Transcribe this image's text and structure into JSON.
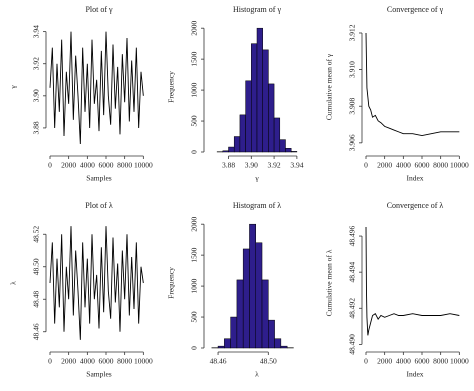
{
  "chart_data": [
    {
      "type": "line",
      "title": "Plot of γ",
      "x_label": "Samples",
      "y_label": "γ",
      "x": [
        0,
        250,
        500,
        750,
        1000,
        1250,
        1500,
        1750,
        2000,
        2250,
        2500,
        2750,
        3000,
        3250,
        3500,
        3750,
        4000,
        4250,
        4500,
        4750,
        5000,
        5250,
        5500,
        5750,
        6000,
        6250,
        6500,
        6750,
        7000,
        7250,
        7500,
        7750,
        8000,
        8250,
        8500,
        8750,
        9000,
        9250,
        9500,
        9750,
        10000
      ],
      "values": [
        3.905,
        3.93,
        3.88,
        3.92,
        3.89,
        3.935,
        3.875,
        3.915,
        3.895,
        3.94,
        3.885,
        3.925,
        3.9,
        3.87,
        3.93,
        3.89,
        3.92,
        3.88,
        3.935,
        3.895,
        3.91,
        3.878,
        3.928,
        3.888,
        3.94,
        3.9,
        3.882,
        3.932,
        3.892,
        3.918,
        3.876,
        3.926,
        3.896,
        3.936,
        3.884,
        3.922,
        3.89,
        3.93,
        3.88,
        3.915,
        3.9
      ],
      "color": "#000000",
      "xlim": [
        0,
        10500
      ],
      "xticks": [
        0,
        2000,
        4000,
        6000,
        8000,
        10000
      ],
      "ylim": [
        3.865,
        3.946
      ],
      "yticks": [
        3.88,
        {
          "value": 3.9,
          "label": "3.90"
        },
        3.92,
        3.94
      ]
    },
    {
      "type": "histogram",
      "title": "Histogram of γ",
      "x_label": "γ",
      "y_label": "Frequency",
      "bins": [
        3.87,
        3.875,
        3.88,
        3.885,
        3.89,
        3.895,
        3.9,
        3.905,
        3.91,
        3.915,
        3.92,
        3.925,
        3.93,
        3.935,
        3.94
      ],
      "values": [
        5,
        20,
        80,
        250,
        600,
        1150,
        1750,
        2000,
        1650,
        1100,
        550,
        200,
        60,
        10
      ],
      "color": "#2e1e8c",
      "xlim": [
        3.862,
        3.948
      ],
      "xticks": [
        3.88,
        {
          "value": 3.9,
          "label": "3.90"
        },
        3.92,
        3.94
      ],
      "ylim": [
        0,
        2100
      ],
      "yticks": [
        0,
        500,
        1000,
        1500,
        2000
      ]
    },
    {
      "type": "line",
      "title": "Convergence of γ",
      "x_label": "Index",
      "y_label": "Cumulative mean of γ",
      "x": [
        1,
        50,
        100,
        200,
        300,
        500,
        700,
        1000,
        1300,
        1600,
        2000,
        2500,
        3000,
        3500,
        4000,
        5000,
        6000,
        7000,
        8000,
        9000,
        10000
      ],
      "values": [
        3.912,
        3.9105,
        3.909,
        3.9085,
        3.908,
        3.9078,
        3.9074,
        3.9075,
        3.9072,
        3.9071,
        3.9069,
        3.9068,
        3.9067,
        3.9066,
        3.9065,
        3.9065,
        3.9064,
        3.9065,
        3.9066,
        3.9066,
        3.9066
      ],
      "color": "#000000",
      "xlim": [
        0,
        10500
      ],
      "xticks": [
        0,
        2000,
        4000,
        6000,
        8000,
        10000
      ],
      "ylim": [
        3.9055,
        3.9126
      ],
      "yticks": [
        3.906,
        3.908,
        {
          "value": 3.91,
          "label": "3.910"
        },
        3.912
      ]
    },
    {
      "type": "line",
      "title": "Plot of λ",
      "x_label": "Samples",
      "y_label": "λ",
      "x": [
        0,
        250,
        500,
        750,
        1000,
        1250,
        1500,
        1750,
        2000,
        2250,
        2500,
        2750,
        3000,
        3250,
        3500,
        3750,
        4000,
        4250,
        4500,
        4750,
        5000,
        5250,
        5500,
        5750,
        6000,
        6250,
        6500,
        6750,
        7000,
        7250,
        7500,
        7750,
        8000,
        8250,
        8500,
        8750,
        9000,
        9250,
        9500,
        9750,
        10000
      ],
      "values": [
        48.49,
        48.515,
        48.465,
        48.505,
        48.475,
        48.52,
        48.46,
        48.5,
        48.48,
        48.525,
        48.47,
        48.51,
        48.485,
        48.455,
        48.515,
        48.475,
        48.505,
        48.465,
        48.52,
        48.48,
        48.495,
        48.462,
        48.512,
        48.472,
        48.525,
        48.485,
        48.468,
        48.518,
        48.478,
        48.502,
        48.46,
        48.51,
        48.48,
        48.52,
        48.47,
        48.506,
        48.474,
        48.515,
        48.465,
        48.5,
        48.49
      ],
      "color": "#000000",
      "xlim": [
        0,
        10500
      ],
      "xticks": [
        0,
        2000,
        4000,
        6000,
        8000,
        10000
      ],
      "ylim": [
        48.45,
        48.53
      ],
      "yticks": [
        48.46,
        48.48,
        {
          "value": 48.5,
          "label": "48.50"
        },
        48.52
      ]
    },
    {
      "type": "histogram",
      "title": "Histogram of λ",
      "x_label": "λ",
      "y_label": "Frequency",
      "bins": [
        48.455,
        48.46,
        48.465,
        48.47,
        48.475,
        48.48,
        48.485,
        48.49,
        48.495,
        48.5,
        48.505,
        48.51,
        48.515,
        48.52
      ],
      "values": [
        5,
        30,
        150,
        500,
        1100,
        1600,
        2000,
        1700,
        1100,
        450,
        150,
        30,
        5
      ],
      "color": "#2e1e8c",
      "xlim": [
        48.452,
        48.53
      ],
      "xticks": [
        48.46,
        {
          "value": 48.5,
          "label": "48.50"
        }
      ],
      "ylim": [
        0,
        2100
      ],
      "yticks": [
        0,
        500,
        1000,
        1500,
        2000
      ]
    },
    {
      "type": "line",
      "title": "Convergence of λ",
      "x_label": "Index",
      "y_label": "Cumulative mean of λ",
      "x": [
        1,
        50,
        100,
        200,
        300,
        500,
        700,
        1000,
        1300,
        1600,
        2000,
        2500,
        3000,
        3500,
        4000,
        5000,
        6000,
        7000,
        8000,
        9000,
        10000
      ],
      "values": [
        48.4965,
        48.493,
        48.4915,
        48.4905,
        48.4908,
        48.4912,
        48.4916,
        48.4917,
        48.4914,
        48.4916,
        48.4915,
        48.4916,
        48.4917,
        48.4916,
        48.4916,
        48.4917,
        48.4916,
        48.4916,
        48.4916,
        48.4917,
        48.4916
      ],
      "color": "#000000",
      "xlim": [
        0,
        10500
      ],
      "xticks": [
        0,
        2000,
        4000,
        6000,
        8000,
        10000
      ],
      "ylim": [
        48.4898,
        48.497
      ],
      "yticks": [
        {
          "value": 48.49,
          "label": "48.490"
        },
        48.492,
        48.494,
        48.496
      ]
    }
  ]
}
